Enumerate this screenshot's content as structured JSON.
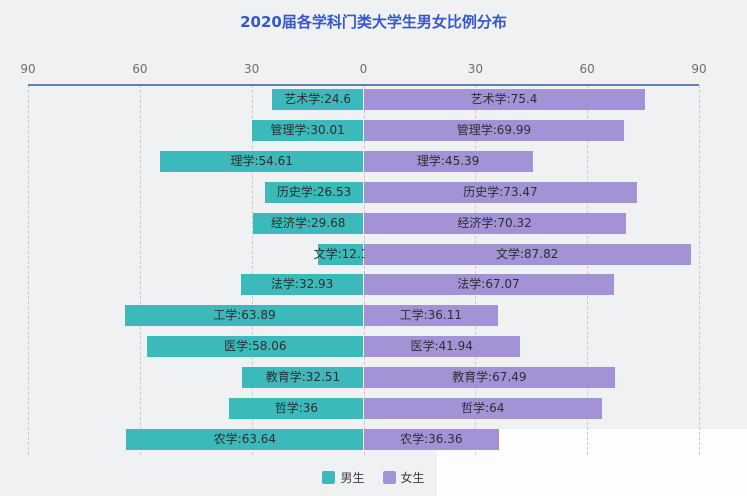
{
  "title": "2020届各学科门类大学生男女比例分布",
  "axis": {
    "tick_values": [
      -90,
      -60,
      -30,
      0,
      30,
      60,
      90
    ],
    "tick_labels": [
      "90",
      "60",
      "30",
      "0",
      "30",
      "60",
      "90"
    ],
    "max": 90
  },
  "legend": {
    "items": [
      {
        "label": "男生",
        "color": "#3cb9ba"
      },
      {
        "label": "女生",
        "color": "#a393d6"
      }
    ]
  },
  "colors": {
    "male_bar": "#3cb9ba",
    "female_bar": "#a393d6",
    "title": "#3657cf",
    "axis_line": "#5c82ad",
    "gridline": "#c7c7cc",
    "background": "#f0f1f3",
    "bar_label_text": "#2e2e2e"
  },
  "chart_data": {
    "type": "bar",
    "subtype": "diverging-horizontal",
    "title": "2020届各学科门类大学生男女比例分布",
    "categories": [
      "艺术学",
      "管理学",
      "理学",
      "历史学",
      "经济学",
      "文学",
      "法学",
      "工学",
      "医学",
      "教育学",
      "哲学",
      "农学"
    ],
    "series": [
      {
        "name": "男生",
        "side": "left",
        "color": "#3cb9ba",
        "values": [
          24.6,
          30.01,
          54.61,
          26.53,
          29.68,
          12.1,
          32.93,
          63.89,
          58.06,
          32.51,
          36,
          63.64
        ],
        "labels": [
          "艺术学:24.6",
          "管理学:30.01",
          "理学:54.61",
          "历史学:26.53",
          "经济学:29.68",
          "文学:12.1",
          "法学:32.93",
          "工学:63.89",
          "医学:58.06",
          "教育学:32.51",
          "哲学:36",
          "农学:63.64"
        ]
      },
      {
        "name": "女生",
        "side": "right",
        "color": "#a393d6",
        "values": [
          75.4,
          69.99,
          45.39,
          73.47,
          70.32,
          87.82,
          67.07,
          36.11,
          41.94,
          67.49,
          64,
          36.36
        ],
        "labels": [
          "艺术学:75.4",
          "管理学:69.99",
          "理学:45.39",
          "历史学:73.47",
          "经济学:70.32",
          "文学:87.82",
          "法学:67.07",
          "工学:36.11",
          "医学:41.94",
          "教育学:67.49",
          "哲学:64",
          "农学:36.36"
        ]
      }
    ],
    "xlim": [
      -90,
      90
    ],
    "grid": "dashed-vertical",
    "legend_position": "bottom",
    "value_labels": "inside-bars"
  }
}
